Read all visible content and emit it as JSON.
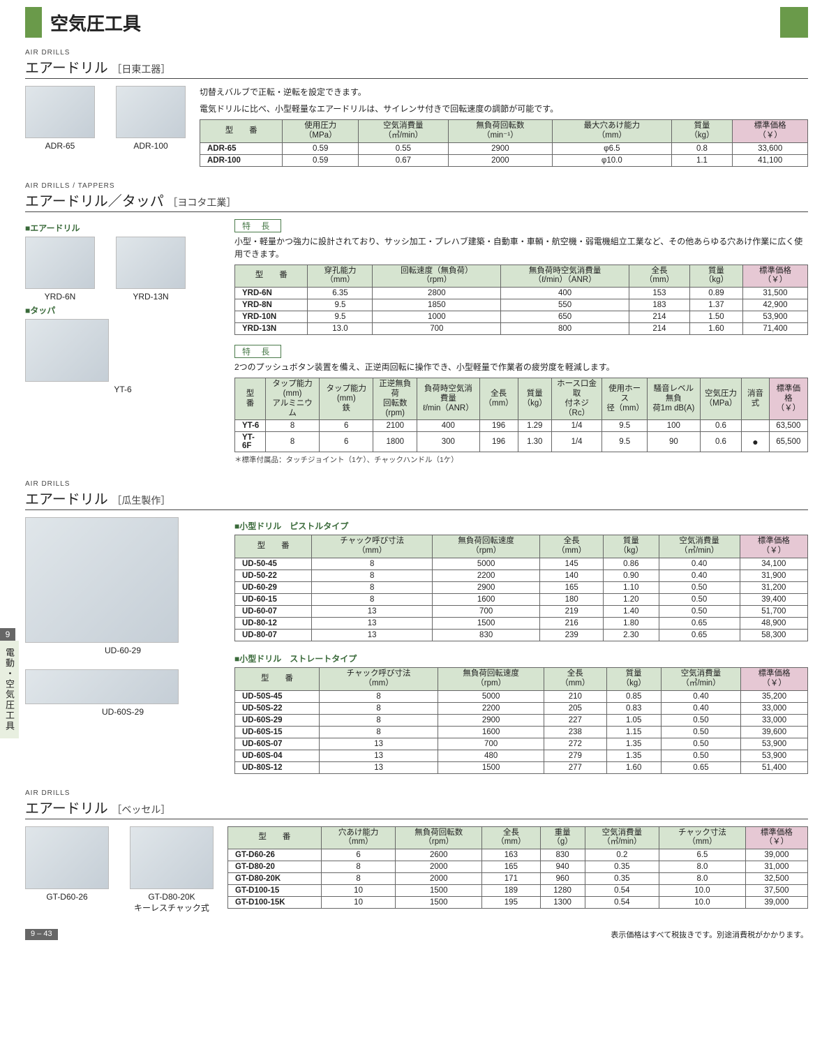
{
  "page": {
    "title": "空気圧工具",
    "side_tab_num": "9",
    "side_tab_text": "電動・空気圧工具",
    "page_num": "9 – 43",
    "footer_note": "表示価格はすべて税抜きです。別途消費税がかかります。"
  },
  "s1": {
    "label_en": "AIR DRILLS",
    "title": "エアードリル",
    "mfr": "［日東工器］",
    "img1": "ADR-65",
    "img2": "ADR-100",
    "desc1": "切替えバルブで正転・逆転を設定できます。",
    "desc2": "電気ドリルに比べ、小型軽量なエアードリルは、サイレンサ付きで回転速度の調節が可能です。",
    "table": {
      "h": [
        "型　　番",
        "使用圧力\n（MPa）",
        "空気消費量\n（㎥/min）",
        "無負荷回転数\n（min⁻¹）",
        "最大穴あけ能力\n（mm）",
        "質量\n（kg）",
        "標準価格\n（￥）"
      ],
      "r": [
        [
          "ADR-65",
          "0.59",
          "0.55",
          "2900",
          "φ6.5",
          "0.8",
          "33,600"
        ],
        [
          "ADR-100",
          "0.59",
          "0.67",
          "2000",
          "φ10.0",
          "1.1",
          "41,100"
        ]
      ]
    }
  },
  "s2": {
    "label_en": "AIR DRILLS / TAPPERS",
    "title": "エアードリル／タッパ",
    "mfr": "［ヨコタ工業］",
    "sub_drill": "エアードリル",
    "sub_tap": "タッパ",
    "img1": "YRD-6N",
    "img2": "YRD-13N",
    "img3": "YT-6",
    "feat": "特 長",
    "drill_desc": "小型・軽量かつ強力に設計されており、サッシ加工・プレハブ建築・自動車・車輌・航空機・弱電機組立工業など、その他あらゆる穴あけ作業に広く使用できます。",
    "drill_table": {
      "h": [
        "型　　番",
        "穿孔能力\n（mm）",
        "回転速度（無負荷）\n（rpm）",
        "無負荷時空気消費量\n（ℓ/min）（ANR）",
        "全長\n（mm）",
        "質量\n（kg）",
        "標準価格\n（￥）"
      ],
      "r": [
        [
          "YRD-6N",
          "6.35",
          "2800",
          "400",
          "153",
          "0.89",
          "31,500"
        ],
        [
          "YRD-8N",
          "9.5",
          "1850",
          "550",
          "183",
          "1.37",
          "42,900"
        ],
        [
          "YRD-10N",
          "9.5",
          "1000",
          "650",
          "214",
          "1.50",
          "53,900"
        ],
        [
          "YRD-13N",
          "13.0",
          "700",
          "800",
          "214",
          "1.60",
          "71,400"
        ]
      ]
    },
    "tap_desc": "2つのプッシュボタン装置を備え、正逆両回転に操作でき、小型軽量で作業者の疲労度を軽減します。",
    "tap_table": {
      "h": [
        "型　番",
        "タップ能力(mm)\nアルミニウム",
        "タップ能力(mm)\n鉄",
        "正逆無負荷\n回転数(rpm)",
        "負荷時空気消費量\nℓ/min（ANR）",
        "全長\n（mm）",
        "質量\n（kg）",
        "ホース口金取\n付ネジ（Rc）",
        "使用ホース\n径（mm）",
        "騒音レベル無負\n荷1m dB(A)",
        "空気圧力\n（MPa）",
        "消音式",
        "標準価格\n（￥）"
      ],
      "r": [
        [
          "YT-6",
          "8",
          "6",
          "2100",
          "400",
          "196",
          "1.29",
          "1/4",
          "9.5",
          "100",
          "0.6",
          "",
          "63,500"
        ],
        [
          "YT-6F",
          "8",
          "6",
          "1800",
          "300",
          "196",
          "1.30",
          "1/4",
          "9.5",
          "90",
          "0.6",
          "●",
          "65,500"
        ]
      ]
    },
    "tap_note": "＊標準付属品：タッチジョイント（1ケ）、チャックハンドル（1ケ）"
  },
  "s3": {
    "label_en": "AIR DRILLS",
    "title": "エアードリル",
    "mfr": "［瓜生製作］",
    "img1": "UD-60-29",
    "img2": "UD-60S-29",
    "sub1": "小型ドリル　ピストルタイプ",
    "sub2": "小型ドリル　ストレートタイプ",
    "t1": {
      "h": [
        "型　　番",
        "チャック呼び寸法\n（mm）",
        "無負荷回転速度\n（rpm）",
        "全長\n（mm）",
        "質量\n（kg）",
        "空気消費量\n（㎥/min）",
        "標準価格\n（￥）"
      ],
      "r": [
        [
          "UD-50-45",
          "8",
          "5000",
          "145",
          "0.86",
          "0.40",
          "34,100"
        ],
        [
          "UD-50-22",
          "8",
          "2200",
          "140",
          "0.90",
          "0.40",
          "31,900"
        ],
        [
          "UD-60-29",
          "8",
          "2900",
          "165",
          "1.10",
          "0.50",
          "31,200"
        ],
        [
          "UD-60-15",
          "8",
          "1600",
          "180",
          "1.20",
          "0.50",
          "39,400"
        ],
        [
          "UD-60-07",
          "13",
          "700",
          "219",
          "1.40",
          "0.50",
          "51,700"
        ],
        [
          "UD-80-12",
          "13",
          "1500",
          "216",
          "1.80",
          "0.65",
          "48,900"
        ],
        [
          "UD-80-07",
          "13",
          "830",
          "239",
          "2.30",
          "0.65",
          "58,300"
        ]
      ]
    },
    "t2": {
      "h": [
        "型　　番",
        "チャック呼び寸法\n（mm）",
        "無負荷回転速度\n（rpm）",
        "全長\n（mm）",
        "質量\n（kg）",
        "空気消費量\n（㎥/min）",
        "標準価格\n（￥）"
      ],
      "r": [
        [
          "UD-50S-45",
          "8",
          "5000",
          "210",
          "0.85",
          "0.40",
          "35,200"
        ],
        [
          "UD-50S-22",
          "8",
          "2200",
          "205",
          "0.83",
          "0.40",
          "33,000"
        ],
        [
          "UD-60S-29",
          "8",
          "2900",
          "227",
          "1.05",
          "0.50",
          "33,000"
        ],
        [
          "UD-60S-15",
          "8",
          "1600",
          "238",
          "1.15",
          "0.50",
          "39,600"
        ],
        [
          "UD-60S-07",
          "13",
          "700",
          "272",
          "1.35",
          "0.50",
          "53,900"
        ],
        [
          "UD-60S-04",
          "13",
          "480",
          "279",
          "1.35",
          "0.50",
          "53,900"
        ],
        [
          "UD-80S-12",
          "13",
          "1500",
          "277",
          "1.60",
          "0.65",
          "51,400"
        ]
      ]
    }
  },
  "s4": {
    "label_en": "AIR DRILLS",
    "title": "エアードリル",
    "mfr": "［ベッセル］",
    "img1": "GT-D60-26",
    "img2": "GT-D80-20K\nキーレスチャック式",
    "t": {
      "h": [
        "型　　番",
        "穴あけ能力\n（mm）",
        "無負荷回転数\n（rpm）",
        "全長\n（mm）",
        "重量\n（g）",
        "空気消費量\n（㎥/min）",
        "チャック寸法\n（mm）",
        "標準価格\n（￥）"
      ],
      "r": [
        [
          "GT-D60-26",
          "6",
          "2600",
          "163",
          "830",
          "0.2",
          "6.5",
          "39,000"
        ],
        [
          "GT-D80-20",
          "8",
          "2000",
          "165",
          "940",
          "0.35",
          "8.0",
          "31,000"
        ],
        [
          "GT-D80-20K",
          "8",
          "2000",
          "171",
          "960",
          "0.35",
          "8.0",
          "32,500"
        ],
        [
          "GT-D100-15",
          "10",
          "1500",
          "189",
          "1280",
          "0.54",
          "10.0",
          "37,500"
        ],
        [
          "GT-D100-15K",
          "10",
          "1500",
          "195",
          "1300",
          "0.54",
          "10.0",
          "39,000"
        ]
      ]
    }
  }
}
